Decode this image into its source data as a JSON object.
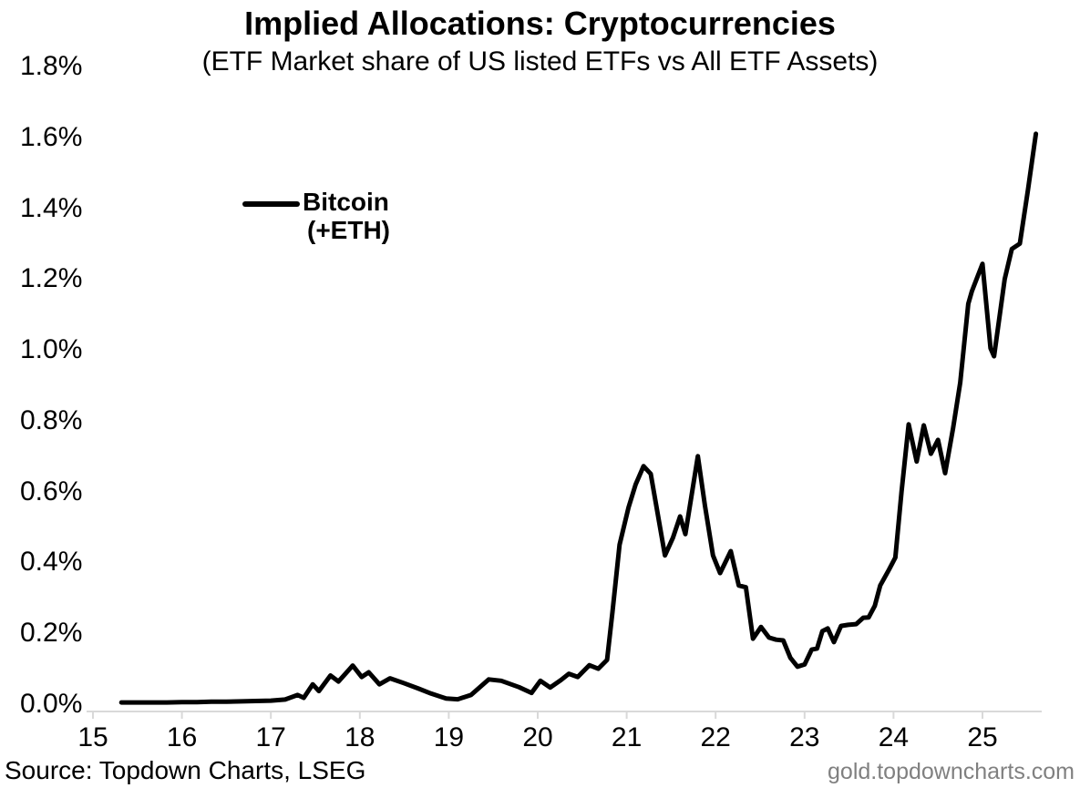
{
  "title": "Implied Allocations: Cryptocurrencies",
  "subtitle": "(ETF Market share of US listed ETFs vs All ETF Assets)",
  "legend": {
    "line1": "Bitcoin",
    "line2": "(+ETH)"
  },
  "footer": {
    "source": "Source: Topdown Charts, LSEG",
    "watermark": "gold.topdowncharts.com"
  },
  "colors": {
    "series_line": "#000000",
    "axis": "#d9d9d9",
    "text": "#000000",
    "watermark": "#808080",
    "background": "#ffffff"
  },
  "chart_data": {
    "type": "line",
    "title": "Implied Allocations: Cryptocurrencies",
    "subtitle": "(ETF Market share of US listed ETFs vs All ETF Assets)",
    "xlabel": "",
    "ylabel": "",
    "x_units": "year (two-digit, 15 = 2015)",
    "y_units": "percent",
    "x_ticks": [
      15,
      16,
      17,
      18,
      19,
      20,
      21,
      22,
      23,
      24,
      25
    ],
    "y_ticks_pct": [
      0.0,
      0.2,
      0.4,
      0.6,
      0.8,
      1.0,
      1.2,
      1.4,
      1.6,
      1.8
    ],
    "xlim": [
      14.93,
      25.72
    ],
    "ylim_pct": [
      0.0,
      1.8
    ],
    "grid": false,
    "legend_position": "upper-left-inside",
    "axis_color": "#d9d9d9",
    "series": [
      {
        "name": "Bitcoin (+ETH)",
        "color": "#000000",
        "points_year_pct": [
          [
            15.32,
            0.005
          ],
          [
            15.5,
            0.005
          ],
          [
            15.67,
            0.005
          ],
          [
            15.83,
            0.005
          ],
          [
            16.0,
            0.006
          ],
          [
            16.17,
            0.006
          ],
          [
            16.33,
            0.007
          ],
          [
            16.5,
            0.007
          ],
          [
            16.67,
            0.008
          ],
          [
            16.83,
            0.009
          ],
          [
            17.0,
            0.01
          ],
          [
            17.16,
            0.013
          ],
          [
            17.3,
            0.026
          ],
          [
            17.37,
            0.018
          ],
          [
            17.47,
            0.056
          ],
          [
            17.54,
            0.037
          ],
          [
            17.67,
            0.081
          ],
          [
            17.76,
            0.064
          ],
          [
            17.92,
            0.109
          ],
          [
            18.02,
            0.077
          ],
          [
            18.1,
            0.09
          ],
          [
            18.22,
            0.056
          ],
          [
            18.34,
            0.073
          ],
          [
            18.49,
            0.06
          ],
          [
            18.66,
            0.044
          ],
          [
            18.8,
            0.03
          ],
          [
            18.97,
            0.016
          ],
          [
            19.1,
            0.014
          ],
          [
            19.25,
            0.026
          ],
          [
            19.45,
            0.07
          ],
          [
            19.59,
            0.066
          ],
          [
            19.79,
            0.048
          ],
          [
            19.93,
            0.032
          ],
          [
            20.03,
            0.066
          ],
          [
            20.14,
            0.047
          ],
          [
            20.26,
            0.068
          ],
          [
            20.35,
            0.086
          ],
          [
            20.45,
            0.077
          ],
          [
            20.58,
            0.11
          ],
          [
            20.68,
            0.1
          ],
          [
            20.78,
            0.125
          ],
          [
            20.84,
            0.26
          ],
          [
            20.92,
            0.45
          ],
          [
            21.02,
            0.555
          ],
          [
            21.1,
            0.62
          ],
          [
            21.19,
            0.672
          ],
          [
            21.27,
            0.65
          ],
          [
            21.43,
            0.42
          ],
          [
            21.52,
            0.47
          ],
          [
            21.6,
            0.53
          ],
          [
            21.66,
            0.48
          ],
          [
            21.8,
            0.7
          ],
          [
            21.88,
            0.56
          ],
          [
            21.97,
            0.42
          ],
          [
            22.05,
            0.37
          ],
          [
            22.17,
            0.432
          ],
          [
            22.26,
            0.335
          ],
          [
            22.34,
            0.33
          ],
          [
            22.42,
            0.185
          ],
          [
            22.51,
            0.218
          ],
          [
            22.6,
            0.188
          ],
          [
            22.68,
            0.182
          ],
          [
            22.76,
            0.18
          ],
          [
            22.84,
            0.131
          ],
          [
            22.92,
            0.106
          ],
          [
            23.0,
            0.112
          ],
          [
            23.08,
            0.154
          ],
          [
            23.14,
            0.157
          ],
          [
            23.2,
            0.206
          ],
          [
            23.26,
            0.214
          ],
          [
            23.33,
            0.175
          ],
          [
            23.41,
            0.221
          ],
          [
            23.49,
            0.224
          ],
          [
            23.58,
            0.226
          ],
          [
            23.66,
            0.244
          ],
          [
            23.72,
            0.245
          ],
          [
            23.79,
            0.278
          ],
          [
            23.85,
            0.335
          ],
          [
            23.95,
            0.38
          ],
          [
            24.02,
            0.414
          ],
          [
            24.09,
            0.6
          ],
          [
            24.17,
            0.79
          ],
          [
            24.26,
            0.685
          ],
          [
            24.34,
            0.787
          ],
          [
            24.42,
            0.707
          ],
          [
            24.5,
            0.746
          ],
          [
            24.58,
            0.652
          ],
          [
            24.67,
            0.78
          ],
          [
            24.75,
            0.908
          ],
          [
            24.84,
            1.13
          ],
          [
            24.88,
            1.165
          ],
          [
            25.0,
            1.243
          ],
          [
            25.09,
            1.005
          ],
          [
            25.13,
            0.982
          ],
          [
            25.25,
            1.2
          ],
          [
            25.33,
            1.285
          ],
          [
            25.42,
            1.3
          ],
          [
            25.51,
            1.45
          ],
          [
            25.6,
            1.61
          ]
        ]
      }
    ]
  }
}
